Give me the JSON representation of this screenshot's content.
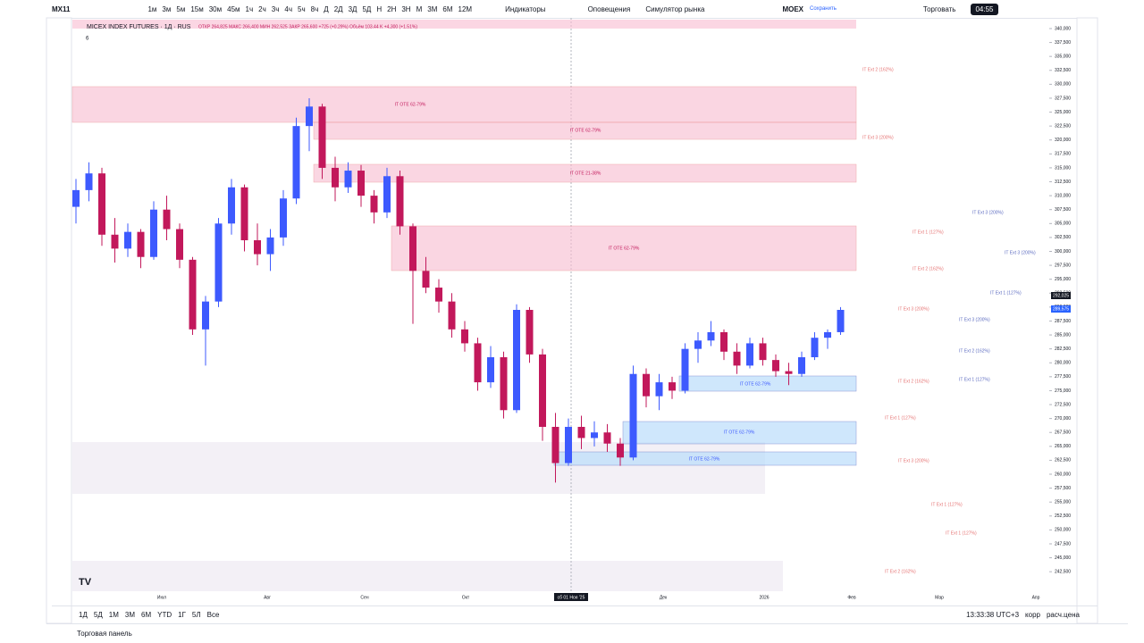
{
  "toolbar": {
    "symbol": "MX11",
    "intervals": [
      "1м",
      "3м",
      "5м",
      "15м",
      "30м",
      "45м",
      "1ч",
      "2ч",
      "3ч",
      "4ч",
      "5ч",
      "8ч",
      "Д",
      "2Д",
      "3Д",
      "5Д",
      "Н",
      "2Н",
      "3Н",
      "М",
      "3М",
      "6М",
      "12М"
    ],
    "indicators": "Индикаторы",
    "alerts": "Оповещения",
    "replay": "Симулятор рынка",
    "exchange": "MOEX",
    "save": "Сохранить",
    "trade": "Торговать",
    "clock": "04:55"
  },
  "legend": {
    "title": "MICEX INDEX FUTURES · 1Д · RUS",
    "ohlc": "ОТКР 264,825 МАКС 266,400 МИН 262,525 ЗАКР 265,600 +725 (+0.29%) Объём 103.44 K +4,300 (+1.51%)",
    "collapsed": "6"
  },
  "chart": {
    "ylim": [
      239000,
      341600
    ],
    "yticks": [
      {
        "value": 340000,
        "label": "340,000"
      },
      {
        "value": 337500,
        "label": "337,500"
      },
      {
        "value": 335000,
        "label": "335,000"
      },
      {
        "value": 332500,
        "label": "332,500"
      },
      {
        "value": 330000,
        "label": "330,000"
      },
      {
        "value": 327500,
        "label": "327,500"
      },
      {
        "value": 325000,
        "label": "325,000"
      },
      {
        "value": 322500,
        "label": "322,500"
      },
      {
        "value": 320000,
        "label": "320,000"
      },
      {
        "value": 317500,
        "label": "317,500"
      },
      {
        "value": 315000,
        "label": "315,000"
      },
      {
        "value": 312500,
        "label": "312,500"
      },
      {
        "value": 310000,
        "label": "310,000"
      },
      {
        "value": 307500,
        "label": "307,500"
      },
      {
        "value": 305000,
        "label": "305,000"
      },
      {
        "value": 302500,
        "label": "302,500"
      },
      {
        "value": 300000,
        "label": "300,000"
      },
      {
        "value": 297500,
        "label": "297,500"
      },
      {
        "value": 295000,
        "label": "295,000"
      },
      {
        "value": 292500,
        "label": "292,500"
      },
      {
        "value": 290000,
        "label": "290,000"
      },
      {
        "value": 287500,
        "label": "287,500"
      },
      {
        "value": 285000,
        "label": "285,000"
      },
      {
        "value": 282500,
        "label": "282,500"
      },
      {
        "value": 280000,
        "label": "280,000"
      },
      {
        "value": 277500,
        "label": "277,500"
      },
      {
        "value": 275000,
        "label": "275,000"
      },
      {
        "value": 272500,
        "label": "272,500"
      },
      {
        "value": 270000,
        "label": "270,000"
      },
      {
        "value": 267500,
        "label": "267,500"
      },
      {
        "value": 265000,
        "label": "265,000"
      },
      {
        "value": 262500,
        "label": "262,500"
      },
      {
        "value": 260000,
        "label": "260,000"
      },
      {
        "value": 257500,
        "label": "257,500"
      },
      {
        "value": 255000,
        "label": "255,000"
      },
      {
        "value": 252500,
        "label": "252,500"
      },
      {
        "value": 250000,
        "label": "250,000"
      },
      {
        "value": 247500,
        "label": "247,500"
      },
      {
        "value": 245000,
        "label": "245,000"
      },
      {
        "value": 242500,
        "label": "242,500"
      }
    ],
    "candles": [
      [
        308000,
        313000,
        305000,
        311000
      ],
      [
        311000,
        316000,
        309000,
        314000
      ],
      [
        314000,
        315000,
        301000,
        303000
      ],
      [
        303000,
        306000,
        298000,
        300500
      ],
      [
        300500,
        305000,
        299000,
        303500
      ],
      [
        303500,
        304000,
        297000,
        299000
      ],
      [
        299000,
        309000,
        298500,
        307500
      ],
      [
        307500,
        310000,
        302000,
        304000
      ],
      [
        304000,
        305000,
        297000,
        298500
      ],
      [
        298500,
        299000,
        285000,
        286000
      ],
      [
        286000,
        292000,
        279500,
        291000
      ],
      [
        291000,
        306000,
        290000,
        305000
      ],
      [
        305000,
        313000,
        303000,
        311500
      ],
      [
        311500,
        312000,
        300000,
        302000
      ],
      [
        302000,
        305000,
        297500,
        299500
      ],
      [
        299500,
        304000,
        296500,
        302500
      ],
      [
        302500,
        311000,
        301000,
        309500
      ],
      [
        309500,
        324000,
        308500,
        322500
      ],
      [
        322500,
        327500,
        318000,
        326000
      ],
      [
        326000,
        326500,
        313000,
        315000
      ],
      [
        315000,
        317000,
        309000,
        311500
      ],
      [
        311500,
        316000,
        310500,
        314500
      ],
      [
        314500,
        315500,
        308000,
        310000
      ],
      [
        310000,
        311000,
        305000,
        307000
      ],
      [
        307000,
        315000,
        306000,
        313500
      ],
      [
        313500,
        314500,
        303000,
        304500
      ],
      [
        304500,
        305000,
        287000,
        296500
      ],
      [
        296500,
        299000,
        292500,
        293500
      ],
      [
        293500,
        295000,
        289000,
        291000
      ],
      [
        291000,
        292500,
        284500,
        286000
      ],
      [
        286000,
        287500,
        282000,
        283500
      ],
      [
        283500,
        284500,
        275000,
        276500
      ],
      [
        276500,
        283000,
        275500,
        281000
      ],
      [
        281000,
        282000,
        270000,
        271500
      ],
      [
        271500,
        290500,
        271000,
        289500
      ],
      [
        289500,
        290000,
        280000,
        281500
      ],
      [
        281500,
        282500,
        266000,
        268500
      ],
      [
        268500,
        271000,
        258500,
        262000
      ],
      [
        262000,
        270000,
        261500,
        268500
      ],
      [
        268500,
        270500,
        264500,
        266500
      ],
      [
        266500,
        269500,
        265000,
        267500
      ],
      [
        267500,
        269000,
        264000,
        265500
      ],
      [
        265500,
        266500,
        261500,
        263000
      ],
      [
        263000,
        279500,
        262500,
        278000
      ],
      [
        278000,
        279000,
        272000,
        274000
      ],
      [
        274000,
        278000,
        271500,
        276500
      ],
      [
        276500,
        277500,
        273500,
        275000
      ],
      [
        275000,
        283500,
        274500,
        282500
      ],
      [
        282500,
        285500,
        280000,
        284000
      ],
      [
        284000,
        287500,
        283000,
        285500
      ],
      [
        285500,
        286000,
        280500,
        282000
      ],
      [
        282000,
        283500,
        278000,
        279500
      ],
      [
        279500,
        284500,
        279000,
        283500
      ],
      [
        283500,
        284500,
        279500,
        280500
      ],
      [
        280500,
        281500,
        277500,
        278500
      ],
      [
        278500,
        280000,
        276000,
        278000
      ],
      [
        278000,
        282000,
        277500,
        281000
      ],
      [
        281000,
        285500,
        280500,
        284500
      ],
      [
        284500,
        286000,
        282500,
        285500
      ],
      [
        285500,
        290000,
        285000,
        289500
      ]
    ],
    "up_color": "#3d5afe",
    "down_color": "#c2185b",
    "zones": [
      "IT OTE 62-79%",
      "IT OTE 62-79%",
      "IT OTE 21-38%",
      "IT OTE 62-79%",
      "IT OTE 62-79%",
      "IT OTE 62-79%",
      "IT OTE 62-79%"
    ],
    "levels": [
      "IT Ext 2 (162%)",
      "IT Ext 3 (200%)",
      "IT Ext 3 (200%)",
      "IT Ext 1 (127%)",
      "IT Ext 3 (200%)",
      "IT Ext 2 (162%)",
      "IT Ext 1 (127%)",
      "IT Ext 3 (200%)",
      "IT Ext 3 (200%)",
      "IT Ext 2 (162%)",
      "IT Ext 1 (127%)",
      "IT Ext 2 (162%)",
      "IT Ext 1 (127%)",
      "IT Ext 3 (200%)",
      "IT Ext 1 (127%)",
      "IT Ext 1 (127%)",
      "IT Ext 2 (162%)"
    ],
    "price_badges": [
      "292,025",
      "289,575"
    ],
    "time_axis": [
      "Июл",
      "Авг",
      "Сен",
      "Окт",
      "Дек",
      "2026",
      "Фев",
      "Мар",
      "Апр"
    ],
    "crosshair_time": "сб 01 Ноя '25"
  },
  "bottom": {
    "ranges": [
      "1Д",
      "5Д",
      "1М",
      "3М",
      "6М",
      "YTD",
      "1Г",
      "5Л",
      "Все"
    ],
    "time": "13:33:38 UTC+3",
    "adj": "корр",
    "settlement": "расч.цена",
    "panel": "Торговая панель"
  }
}
